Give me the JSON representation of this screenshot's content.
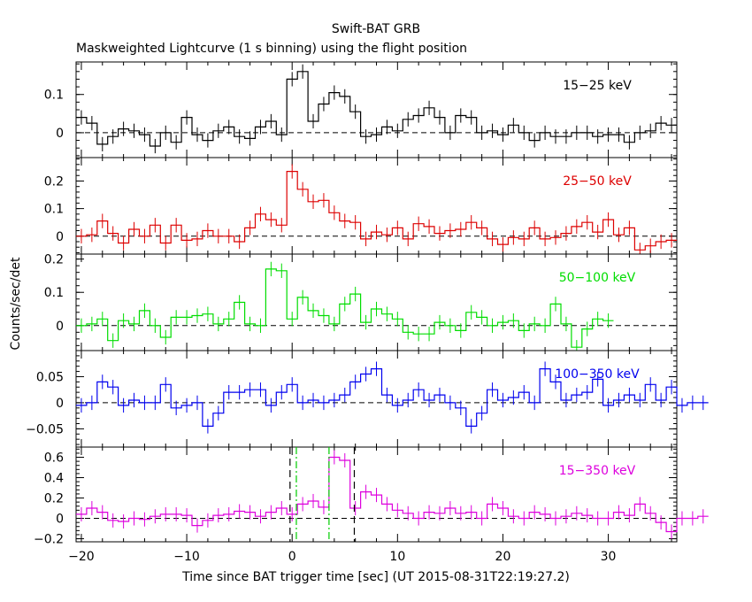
{
  "title": "Swift-BAT GRB",
  "subtitle": "Maskweighted Lightcurve (1 s binning) using the flight position",
  "ylabel": "Counts/sec/det",
  "xlabel": "Time since BAT trigger time [sec] (UT 2015-08-31T22:19:27.2)",
  "chart_data": {
    "type": "line",
    "step": true,
    "x_start": -20,
    "bin_width": 1,
    "xlim": [
      -20.5,
      36.5
    ],
    "xticks": [
      -20,
      -10,
      0,
      10,
      20,
      30
    ],
    "xtick_labels": [
      "−20",
      "−10",
      "0",
      "10",
      "20",
      "30"
    ],
    "grid": false,
    "panels": [
      {
        "label": "15−25 keV",
        "color": "#000000",
        "ylim": [
          -0.065,
          0.185
        ],
        "yticks": [
          0,
          0.1
        ],
        "ytick_labels": [
          "0",
          "0.1"
        ],
        "values": [
          0.04,
          0.025,
          -0.03,
          -0.01,
          0.01,
          0.005,
          -0.005,
          -0.035,
          0.0,
          -0.025,
          0.04,
          -0.005,
          -0.02,
          0.005,
          0.015,
          -0.01,
          -0.015,
          0.015,
          0.03,
          -0.005,
          0.14,
          0.16,
          0.03,
          0.075,
          0.105,
          0.095,
          0.055,
          -0.01,
          -0.005,
          0.015,
          0.005,
          0.035,
          0.045,
          0.065,
          0.04,
          0.0,
          0.045,
          0.04,
          0.0,
          0.005,
          -0.005,
          0.02,
          0.0,
          -0.02,
          0.0,
          -0.01,
          -0.01,
          0.0,
          0.0,
          -0.01,
          -0.005,
          -0.005,
          -0.025,
          0.0,
          0.005,
          0.025,
          0.02
        ]
      },
      {
        "label": "25−50 keV",
        "color": "#dd0000",
        "ylim": [
          -0.065,
          0.285
        ],
        "yticks": [
          0,
          0.1,
          0.2
        ],
        "ytick_labels": [
          "0",
          "0.1",
          "0.2"
        ],
        "values": [
          0.0,
          0.005,
          0.055,
          0.01,
          -0.025,
          0.025,
          0.0,
          0.04,
          -0.025,
          0.04,
          -0.015,
          -0.01,
          0.02,
          0.0,
          0.0,
          -0.02,
          0.03,
          0.08,
          0.06,
          0.04,
          0.235,
          0.17,
          0.125,
          0.13,
          0.085,
          0.055,
          0.05,
          -0.01,
          0.015,
          0.005,
          0.03,
          -0.01,
          0.045,
          0.035,
          0.01,
          0.02,
          0.025,
          0.05,
          0.03,
          -0.01,
          -0.03,
          -0.005,
          -0.01,
          0.03,
          -0.01,
          -0.005,
          0.01,
          0.035,
          0.05,
          0.015,
          0.06,
          0.005,
          0.03,
          -0.05,
          -0.035,
          -0.02,
          -0.015
        ]
      },
      {
        "label": "50−100 keV",
        "color": "#00dd00",
        "ylim": [
          -0.075,
          0.215
        ],
        "yticks": [
          0,
          0.1,
          0.2
        ],
        "ytick_labels": [
          "0",
          "0.1",
          "0.2"
        ],
        "values": [
          0.0,
          0.005,
          0.02,
          -0.045,
          0.015,
          0.005,
          0.045,
          0.0,
          -0.035,
          0.025,
          0.025,
          0.03,
          0.035,
          0.005,
          0.02,
          0.07,
          0.005,
          0.0,
          0.17,
          0.165,
          0.02,
          0.085,
          0.045,
          0.03,
          0.005,
          0.065,
          0.095,
          0.01,
          0.05,
          0.035,
          0.02,
          -0.02,
          -0.025,
          -0.025,
          0.01,
          0.0,
          -0.015,
          0.04,
          0.025,
          0.0,
          0.01,
          0.015,
          -0.015,
          0.005,
          0.0,
          0.065,
          0.005,
          -0.065,
          -0.01,
          0.02,
          0.015
        ]
      },
      {
        "label": "100−350 keV",
        "color": "#0000ee",
        "ylim": [
          -0.085,
          0.1
        ],
        "yticks": [
          -0.05,
          0,
          0.05
        ],
        "ytick_labels": [
          "−0.05",
          "0",
          "0.05"
        ],
        "values": [
          -0.005,
          0.0,
          0.04,
          0.03,
          -0.005,
          0.005,
          0.0,
          0.0,
          0.035,
          -0.01,
          -0.005,
          0.0,
          -0.045,
          -0.02,
          0.02,
          0.02,
          0.025,
          0.025,
          -0.005,
          0.02,
          0.035,
          0.0,
          0.005,
          0.0,
          0.005,
          0.015,
          0.04,
          0.055,
          0.065,
          0.015,
          -0.005,
          0.005,
          0.025,
          0.005,
          0.015,
          0.0,
          -0.01,
          -0.045,
          -0.02,
          0.025,
          0.005,
          0.01,
          0.02,
          0.0,
          0.065,
          0.04,
          0.005,
          0.015,
          0.02,
          0.045,
          -0.005,
          0.005,
          0.015,
          0.005,
          0.035,
          0.005,
          0.03,
          -0.005,
          0.0,
          0.0
        ]
      },
      {
        "label": "15−350 keV",
        "color": "#dd00dd",
        "ylim": [
          -0.23,
          0.7
        ],
        "yticks": [
          -0.2,
          0,
          0.2,
          0.4,
          0.6
        ],
        "ytick_labels": [
          "−0.2",
          "0",
          "0.2",
          "0.4",
          "0.6"
        ],
        "values": [
          0.04,
          0.1,
          0.06,
          -0.02,
          -0.03,
          0.0,
          -0.01,
          0.02,
          0.04,
          0.04,
          0.03,
          -0.07,
          -0.02,
          0.03,
          0.04,
          0.07,
          0.06,
          0.02,
          0.06,
          0.1,
          0.04,
          0.14,
          0.17,
          0.11,
          0.6,
          0.57,
          0.1,
          0.26,
          0.23,
          0.14,
          0.08,
          0.05,
          0.0,
          0.06,
          0.05,
          0.1,
          0.05,
          0.06,
          0.0,
          0.14,
          0.1,
          0.02,
          0.0,
          0.06,
          0.04,
          0.0,
          0.02,
          0.05,
          0.03,
          0.0,
          0.0,
          0.06,
          0.03,
          0.14,
          0.05,
          -0.04,
          -0.13,
          0.0,
          0.0,
          0.02
        ]
      }
    ],
    "markers": [
      {
        "x": -0.2,
        "color": "#000000",
        "style": "dashed"
      },
      {
        "x": 5.9,
        "color": "#000000",
        "style": "dashed"
      },
      {
        "x": 0.4,
        "color": "#00cc00",
        "style": "dashdot"
      },
      {
        "x": 3.5,
        "color": "#00cc00",
        "style": "dashdot"
      }
    ]
  }
}
